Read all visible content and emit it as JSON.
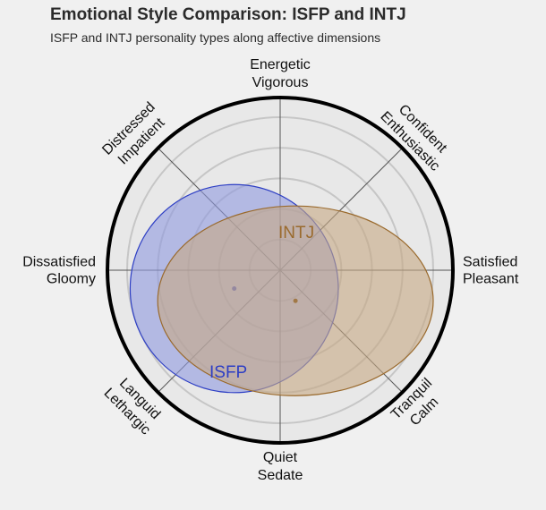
{
  "chart_data": {
    "type": "radar-ellipse",
    "title": "Emotional Style Comparison: ISFP and INTJ",
    "subtitle": "ISFP and INTJ personality types along affective dimensions",
    "axes": [
      {
        "lines": [
          "Energetic",
          "Vigorous"
        ]
      },
      {
        "lines": [
          "Confident",
          "Enthusiastic"
        ]
      },
      {
        "lines": [
          "Satisfied",
          "Pleasant"
        ]
      },
      {
        "lines": [
          "Tranquil",
          "Calm"
        ]
      },
      {
        "lines": [
          "Quiet",
          "Sedate"
        ]
      },
      {
        "lines": [
          "Languid",
          "Lethargic"
        ]
      },
      {
        "lines": [
          "Dissatisfied",
          "Gloomy"
        ]
      },
      {
        "lines": [
          "Distressed",
          "Impatient"
        ]
      }
    ],
    "rings": 5,
    "range": [
      -1,
      1
    ],
    "series": [
      {
        "name": "ISFP",
        "center": [
          -0.3,
          -0.12
        ],
        "radius": [
          0.68,
          0.68
        ],
        "color": "#2e3fc4",
        "fill": "#8f99e0"
      },
      {
        "name": "INTJ",
        "center": [
          0.1,
          -0.2
        ],
        "radius": [
          0.9,
          0.62
        ],
        "color": "#9a6a2d",
        "fill": "#c7a884"
      }
    ]
  }
}
